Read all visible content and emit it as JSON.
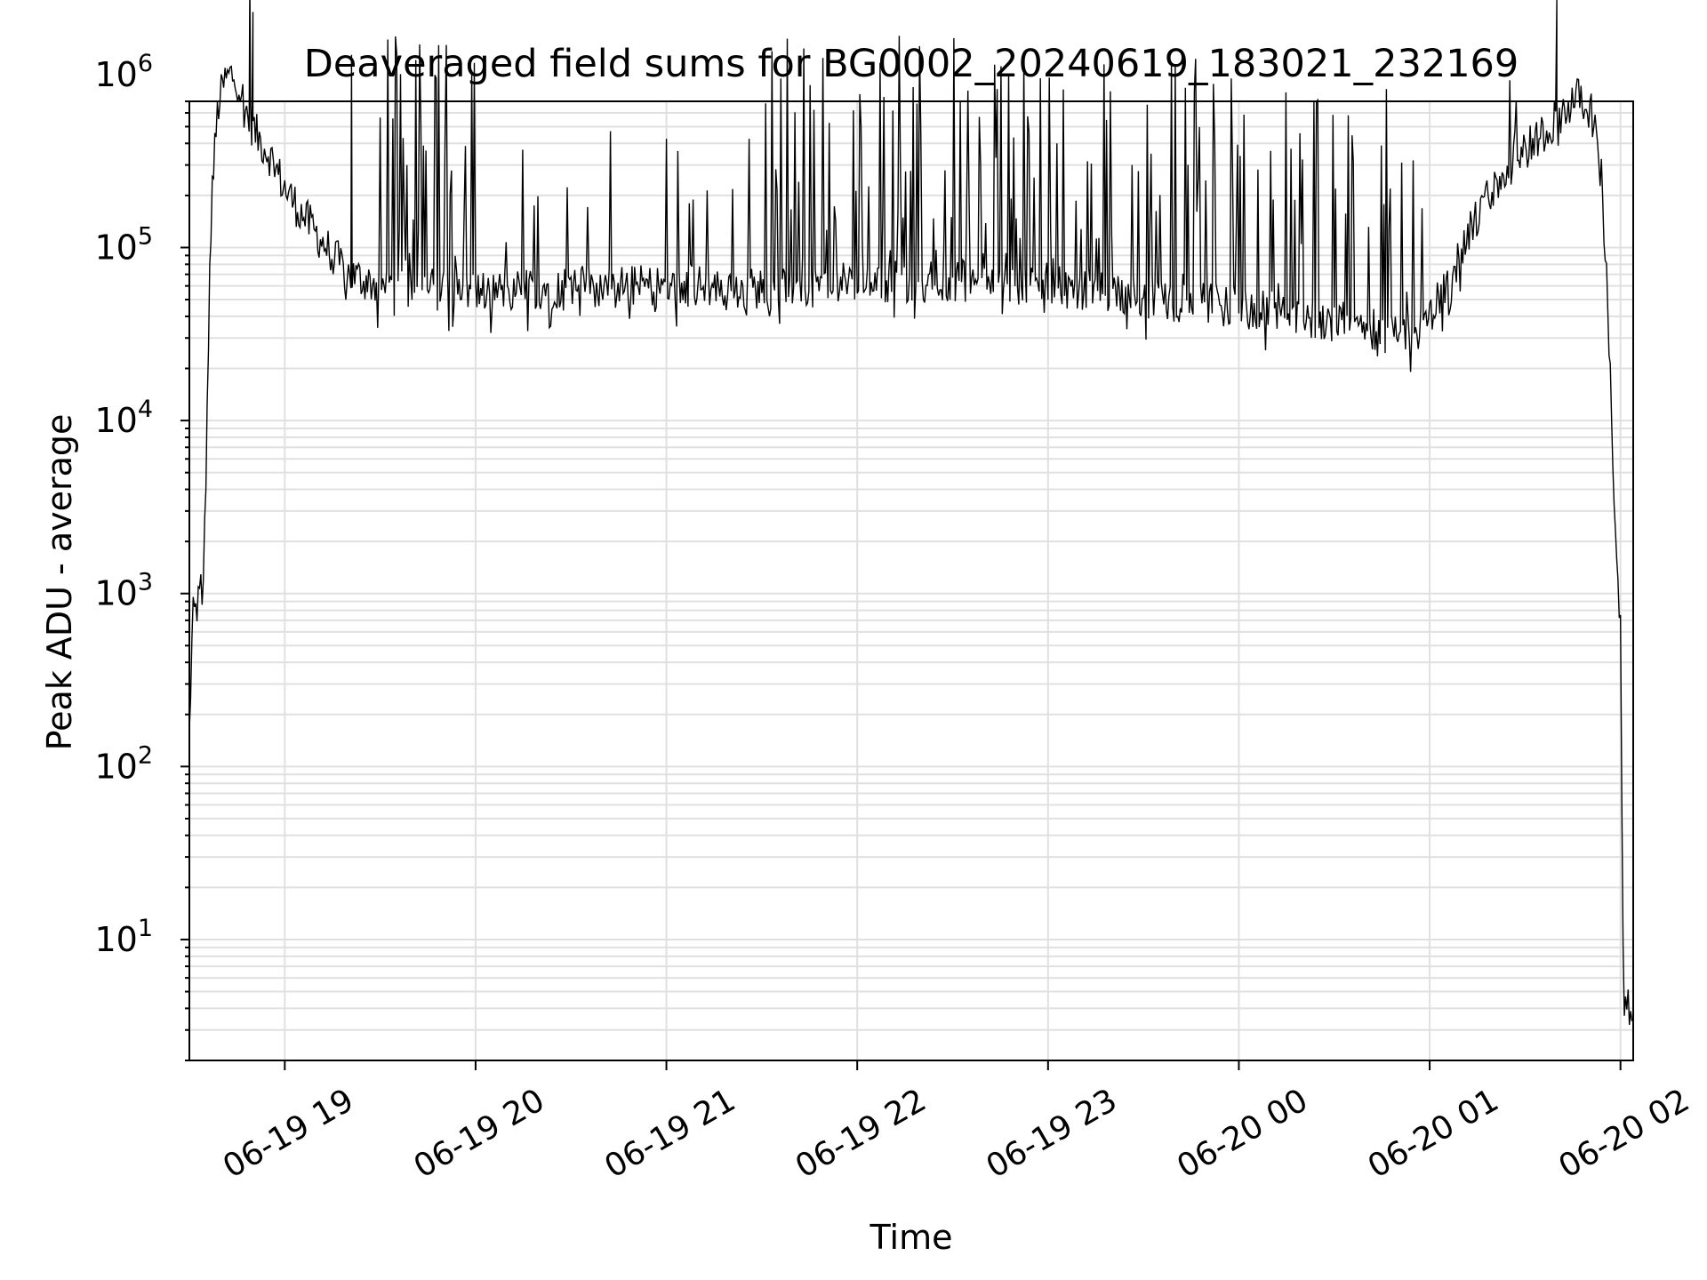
{
  "chart_data": {
    "type": "line",
    "title": "Deaveraged field sums for BG0002_20240619_183021_232169",
    "xlabel": "Time",
    "ylabel": "Peak ADU - average",
    "yscale": "log",
    "ylim": [
      2,
      700000
    ],
    "xlim": [
      "06-19 18:30",
      "06-20 02:04"
    ],
    "grid": true,
    "line_color": "#000000",
    "grid_color": "#e0e0e0",
    "x_ticks": [
      {
        "t": "06-19 19:00",
        "label": "06-19 19"
      },
      {
        "t": "06-19 20:00",
        "label": "06-19 20"
      },
      {
        "t": "06-19 21:00",
        "label": "06-19 21"
      },
      {
        "t": "06-19 22:00",
        "label": "06-19 22"
      },
      {
        "t": "06-19 23:00",
        "label": "06-19 23"
      },
      {
        "t": "06-20 00:00",
        "label": "06-20 00"
      },
      {
        "t": "06-20 01:00",
        "label": "06-20 01"
      },
      {
        "t": "06-20 02:00",
        "label": "06-20 02"
      }
    ],
    "y_ticks": [
      {
        "value": 10,
        "base": "10",
        "exp": "1"
      },
      {
        "value": 100,
        "base": "10",
        "exp": "2"
      },
      {
        "value": 1000,
        "base": "10",
        "exp": "3"
      },
      {
        "value": 10000,
        "base": "10",
        "exp": "4"
      },
      {
        "value": 100000,
        "base": "10",
        "exp": "5"
      },
      {
        "value": 1000000,
        "base": "10",
        "exp": "6"
      }
    ],
    "series": [
      {
        "baseline": [
          [
            "06-19 18:30",
            150
          ],
          [
            "06-19 18:31",
            700
          ],
          [
            "06-19 18:33",
            900
          ],
          [
            "06-19 18:34",
            1200
          ],
          [
            "06-19 18:34",
            750
          ],
          [
            "06-19 18:35",
            3000
          ],
          [
            "06-19 18:36",
            30000
          ],
          [
            "06-19 18:37",
            200000
          ],
          [
            "06-19 18:39",
            650000
          ],
          [
            "06-19 18:41",
            900000
          ],
          [
            "06-19 18:43",
            1000000
          ],
          [
            "06-19 18:45",
            950000
          ],
          [
            "06-19 18:48",
            600000
          ],
          [
            "06-19 18:51",
            450000
          ],
          [
            "06-19 18:55",
            350000
          ],
          [
            "06-19 19:00",
            220000
          ],
          [
            "06-19 19:05",
            160000
          ],
          [
            "06-19 19:10",
            120000
          ],
          [
            "06-19 19:15",
            90000
          ],
          [
            "06-19 19:20",
            70000
          ],
          [
            "06-19 19:30",
            60000
          ],
          [
            "06-19 19:45",
            58000
          ],
          [
            "06-19 20:00",
            55000
          ],
          [
            "06-19 20:20",
            58000
          ],
          [
            "06-19 20:40",
            60000
          ],
          [
            "06-19 21:00",
            60000
          ],
          [
            "06-19 21:30",
            58000
          ],
          [
            "06-19 22:00",
            62000
          ],
          [
            "06-19 22:30",
            65000
          ],
          [
            "06-19 23:00",
            60000
          ],
          [
            "06-19 23:30",
            52000
          ],
          [
            "06-20 00:00",
            45000
          ],
          [
            "06-20 00:30",
            38000
          ],
          [
            "06-20 00:50",
            32000
          ],
          [
            "06-20 00:58",
            35000
          ],
          [
            "06-20 01:05",
            60000
          ],
          [
            "06-20 01:15",
            150000
          ],
          [
            "06-20 01:25",
            300000
          ],
          [
            "06-20 01:35",
            450000
          ],
          [
            "06-20 01:45",
            700000
          ],
          [
            "06-20 01:48",
            750000
          ],
          [
            "06-20 01:51",
            600000
          ],
          [
            "06-20 01:54",
            250000
          ],
          [
            "06-20 01:56",
            50000
          ],
          [
            "06-20 01:58",
            3000
          ],
          [
            "06-20 01:59",
            1100
          ],
          [
            "06-20 02:00",
            700
          ],
          [
            "06-20 02:01",
            4
          ],
          [
            "06-20 02:04",
            4
          ]
        ],
        "spike_zones": [
          {
            "start": "06-19 19:30",
            "end": "06-19 20:00",
            "density": 0.85,
            "peak": 1700000
          },
          {
            "start": "06-19 20:00",
            "end": "06-19 20:45",
            "density": 0.3,
            "peak": 600000
          },
          {
            "start": "06-19 21:00",
            "end": "06-19 21:30",
            "density": 0.2,
            "peak": 500000
          },
          {
            "start": "06-19 21:30",
            "end": "06-19 23:00",
            "density": 0.8,
            "peak": 1700000
          },
          {
            "start": "06-19 23:00",
            "end": "06-20 00:00",
            "density": 0.55,
            "peak": 1300000
          },
          {
            "start": "06-20 00:00",
            "end": "06-20 01:00",
            "density": 0.4,
            "peak": 900000
          },
          {
            "start": "06-20 01:00",
            "end": "06-20 01:40",
            "density": 0.15,
            "peak": 1000000
          }
        ],
        "peaks": [
          [
            "06-19 18:49",
            3800000
          ],
          [
            "06-19 18:50",
            2300000
          ],
          [
            "06-19 19:21",
            1300000
          ],
          [
            "06-20 01:40",
            2700000
          ]
        ]
      }
    ]
  }
}
